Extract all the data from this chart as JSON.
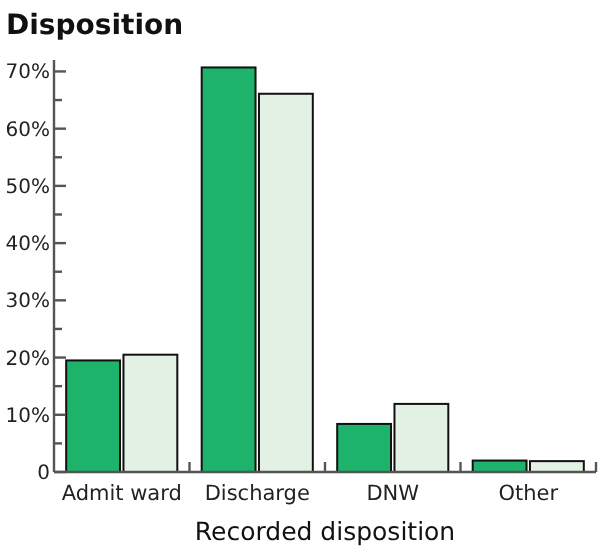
{
  "chart_data": {
    "type": "bar",
    "title": "Disposition",
    "xlabel": "Recorded disposition",
    "categories": [
      "Admit ward",
      "Discharge",
      "DNW",
      "Other"
    ],
    "series": [
      {
        "color": "#1db36b",
        "values": [
          19.5,
          70.7,
          8.4,
          2.0
        ]
      },
      {
        "color": "#e3f1e5",
        "values": [
          20.5,
          66.1,
          11.9,
          1.9
        ]
      }
    ],
    "ylim": [
      0,
      72
    ],
    "yticks": [
      {
        "value": 0,
        "label": "0"
      },
      {
        "value": 5,
        "label": null
      },
      {
        "value": 10,
        "label": "10%"
      },
      {
        "value": 15,
        "label": null
      },
      {
        "value": 20,
        "label": "20%"
      },
      {
        "value": 25,
        "label": null
      },
      {
        "value": 30,
        "label": "30%"
      },
      {
        "value": 35,
        "label": null
      },
      {
        "value": 40,
        "label": "40%"
      },
      {
        "value": 45,
        "label": null
      },
      {
        "value": 50,
        "label": "50%"
      },
      {
        "value": 55,
        "label": null
      },
      {
        "value": 60,
        "label": "60%"
      },
      {
        "value": 65,
        "label": null
      },
      {
        "value": 70,
        "label": "70%"
      }
    ],
    "grid": false
  }
}
